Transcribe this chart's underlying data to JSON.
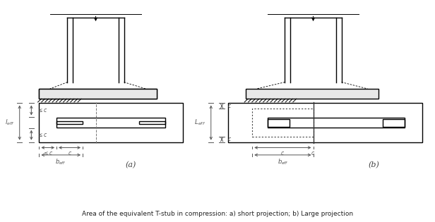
{
  "title": "Area of the equivalent T-stub in compression: a) short projection; b) Large projection",
  "fig_width": 6.16,
  "fig_height": 3.15,
  "bg_color": "#ffffff",
  "line_color": "#000000",
  "label_color": "#555555",
  "dim_color": "#555555"
}
